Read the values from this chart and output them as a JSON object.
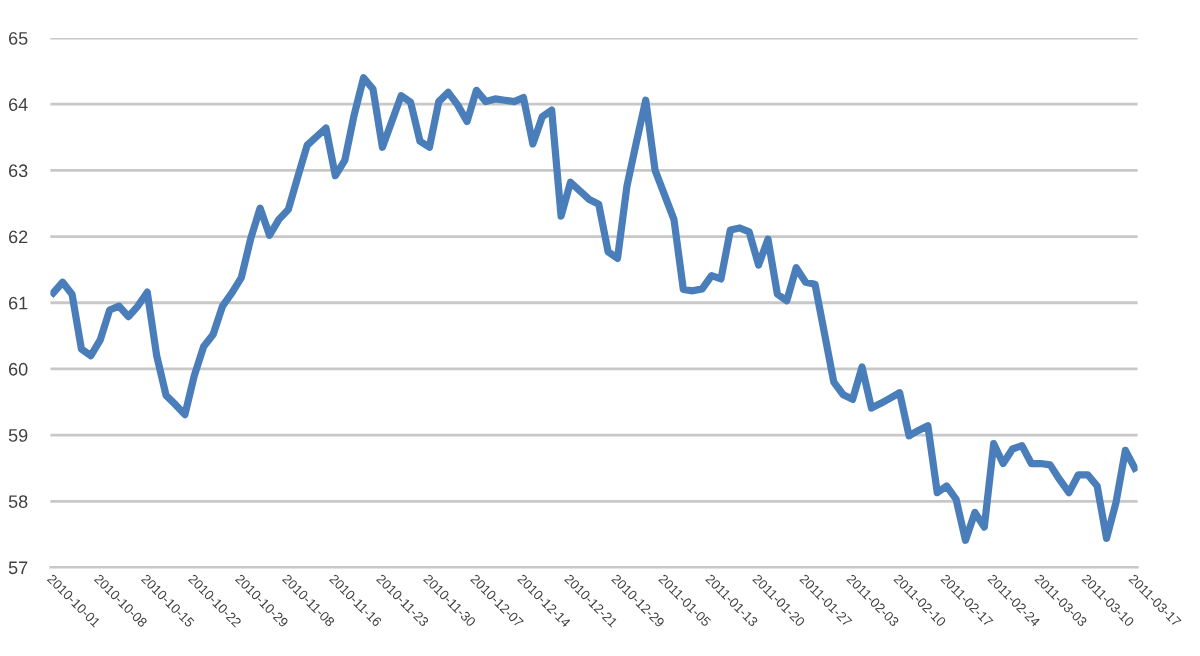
{
  "chart_data": {
    "type": "line",
    "categories": [
      "2010-10-01",
      null,
      null,
      null,
      null,
      "2010-10-08",
      null,
      null,
      null,
      null,
      "2010-10-15",
      null,
      null,
      null,
      null,
      "2010-10-22",
      null,
      null,
      null,
      null,
      "2010-10-29",
      null,
      null,
      null,
      null,
      "2010-11-08",
      null,
      null,
      null,
      null,
      "2010-11-16",
      null,
      null,
      null,
      null,
      "2010-11-23",
      null,
      null,
      null,
      null,
      "2010-11-30",
      null,
      null,
      null,
      null,
      "2010-12-07",
      null,
      null,
      null,
      null,
      "2010-12-14",
      null,
      null,
      null,
      null,
      "2010-12-21",
      null,
      null,
      null,
      null,
      "2010-12-29",
      null,
      null,
      null,
      null,
      "2011-01-05",
      null,
      null,
      null,
      null,
      "2011-01-13",
      null,
      null,
      null,
      null,
      "2011-01-20",
      null,
      null,
      null,
      null,
      "2011-01-27",
      null,
      null,
      null,
      null,
      "2011-02-03",
      null,
      null,
      null,
      null,
      "2011-02-10",
      null,
      null,
      null,
      null,
      "2011-02-17",
      null,
      null,
      null,
      null,
      "2011-02-24",
      null,
      null,
      null,
      null,
      "2011-03-03",
      null,
      null,
      null,
      null,
      "2011-03-10",
      null,
      null,
      null,
      null,
      "2011-03-17"
    ],
    "series": [
      {
        "color": "#4a7ebb",
        "values": [
          61.15,
          61.31,
          61.13,
          60.3,
          60.2,
          60.44,
          60.89,
          60.95,
          60.79,
          60.95,
          61.16,
          60.2,
          59.6,
          59.46,
          59.31,
          59.9,
          60.34,
          60.52,
          60.95,
          61.15,
          61.38,
          61.97,
          62.43,
          62.02,
          62.26,
          62.41,
          62.9,
          63.38,
          63.51,
          63.64,
          62.92,
          63.15,
          63.84,
          64.4,
          64.23,
          63.35,
          63.74,
          64.13,
          64.03,
          63.44,
          63.35,
          64.04,
          64.18,
          63.99,
          63.74,
          64.21,
          64.04,
          64.08,
          64.06,
          64.04,
          64.1,
          63.4,
          63.81,
          63.91,
          62.31,
          62.82,
          62.69,
          62.56,
          62.49,
          61.77,
          61.67,
          62.76,
          63.42,
          64.06,
          63.0,
          62.63,
          62.26,
          61.2,
          61.18,
          61.21,
          61.41,
          61.36,
          62.1,
          62.13,
          62.07,
          61.57,
          61.96,
          61.13,
          61.03,
          61.53,
          61.31,
          61.28,
          60.54,
          59.8,
          59.61,
          59.54,
          60.03,
          59.41,
          59.48,
          59.56,
          59.64,
          58.99,
          59.07,
          59.14,
          58.13,
          58.23,
          58.03,
          57.41,
          57.83,
          57.61,
          58.87,
          58.57,
          58.79,
          58.84,
          58.57,
          58.57,
          58.55,
          58.33,
          58.13,
          58.4,
          58.4,
          58.23,
          57.44,
          57.98,
          58.77,
          58.5
        ]
      }
    ],
    "ylim": [
      57,
      65
    ],
    "yticks": [
      57,
      58,
      59,
      60,
      61,
      62,
      63,
      64,
      65
    ],
    "grid": "y",
    "marker": "none",
    "line_style": "solid"
  }
}
